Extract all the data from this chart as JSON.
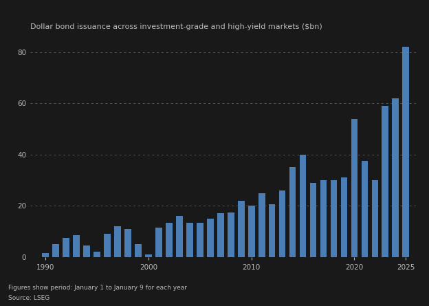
{
  "title": "Dollar bond issuance across investment-grade and high-yield markets ($bn)",
  "footnote1": "Figures show period: January 1 to January 9 for each year",
  "footnote2": "Source: LSEG",
  "years": [
    1990,
    1991,
    1992,
    1993,
    1994,
    1995,
    1996,
    1997,
    1998,
    1999,
    2000,
    2001,
    2002,
    2003,
    2004,
    2005,
    2006,
    2007,
    2008,
    2009,
    2010,
    2011,
    2012,
    2013,
    2014,
    2015,
    2016,
    2017,
    2018,
    2019,
    2020,
    2021,
    2022,
    2023,
    2024,
    2025
  ],
  "values": [
    1.5,
    5.0,
    7.5,
    8.5,
    4.5,
    2.0,
    9.0,
    12.0,
    11.0,
    5.0,
    1.0,
    11.5,
    13.5,
    16.0,
    13.5,
    13.5,
    15.0,
    17.0,
    17.5,
    22.0,
    20.0,
    25.0,
    20.5,
    26.0,
    35.0,
    40.0,
    29.0,
    30.0,
    30.0,
    31.0,
    54.0,
    37.5,
    30.0,
    59.0,
    62.0,
    82.0
  ],
  "bar_color": "#4a7eb5",
  "background_color": "#191919",
  "text_color": "#bbbbbb",
  "grid_color": "#555555",
  "ylim": [
    0,
    86
  ],
  "yticks": [
    0,
    20,
    40,
    60,
    80
  ],
  "xtick_years": [
    1990,
    2000,
    2010,
    2020,
    2025
  ],
  "xlim_left": 1988.5,
  "xlim_right": 2026.0
}
